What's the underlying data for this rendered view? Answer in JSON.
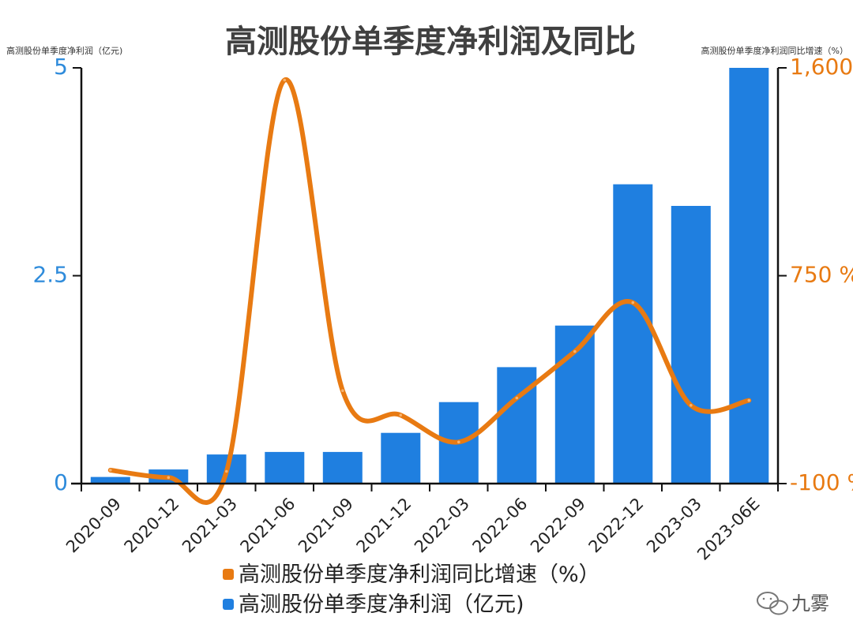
{
  "chart_data": {
    "type": "bar+line",
    "title": "高测股份单季度净利润及同比",
    "left_axis_label": "高测股份单季度净利润（亿元)",
    "right_axis_label": "高测股份单季度净利润同比增速（%）",
    "categories": [
      "2020-09",
      "2020-12",
      "2021-03",
      "2021-06",
      "2021-09",
      "2021-12",
      "2022-03",
      "2022-06",
      "2022-09",
      "2022-12",
      "2023-03",
      "2023-06E"
    ],
    "bar_series": {
      "name": "高测股份单季度净利润（亿元)",
      "values": [
        0.08,
        0.17,
        0.35,
        0.38,
        0.38,
        0.61,
        0.98,
        1.4,
        1.9,
        3.6,
        3.34,
        5.0
      ],
      "color": "#1F7FE0",
      "ylim": [
        0,
        5
      ]
    },
    "line_series": {
      "name": "高测股份单季度净利润同比增速（%）",
      "values": [
        -45,
        -75,
        -50,
        1550,
        280,
        180,
        70,
        250,
        440,
        640,
        220,
        240
      ],
      "color": "#E87A12",
      "ylim": [
        -100,
        1600
      ]
    },
    "left_ticks": [
      {
        "value": 0,
        "label": "0"
      },
      {
        "value": 2.5,
        "label": "2.5"
      },
      {
        "value": 5,
        "label": "5"
      }
    ],
    "right_ticks": [
      {
        "value": -100,
        "label": "-100 %"
      },
      {
        "value": 750,
        "label": "750 %"
      },
      {
        "value": 1600,
        "label": "1,600"
      }
    ]
  },
  "legend": [
    {
      "label": "高测股份单季度净利润同比增速（%）",
      "color": "#E87A12"
    },
    {
      "label": "高测股份单季度净利润（亿元)",
      "color": "#1F7FE0"
    }
  ],
  "watermark": {
    "text": "九雾"
  }
}
